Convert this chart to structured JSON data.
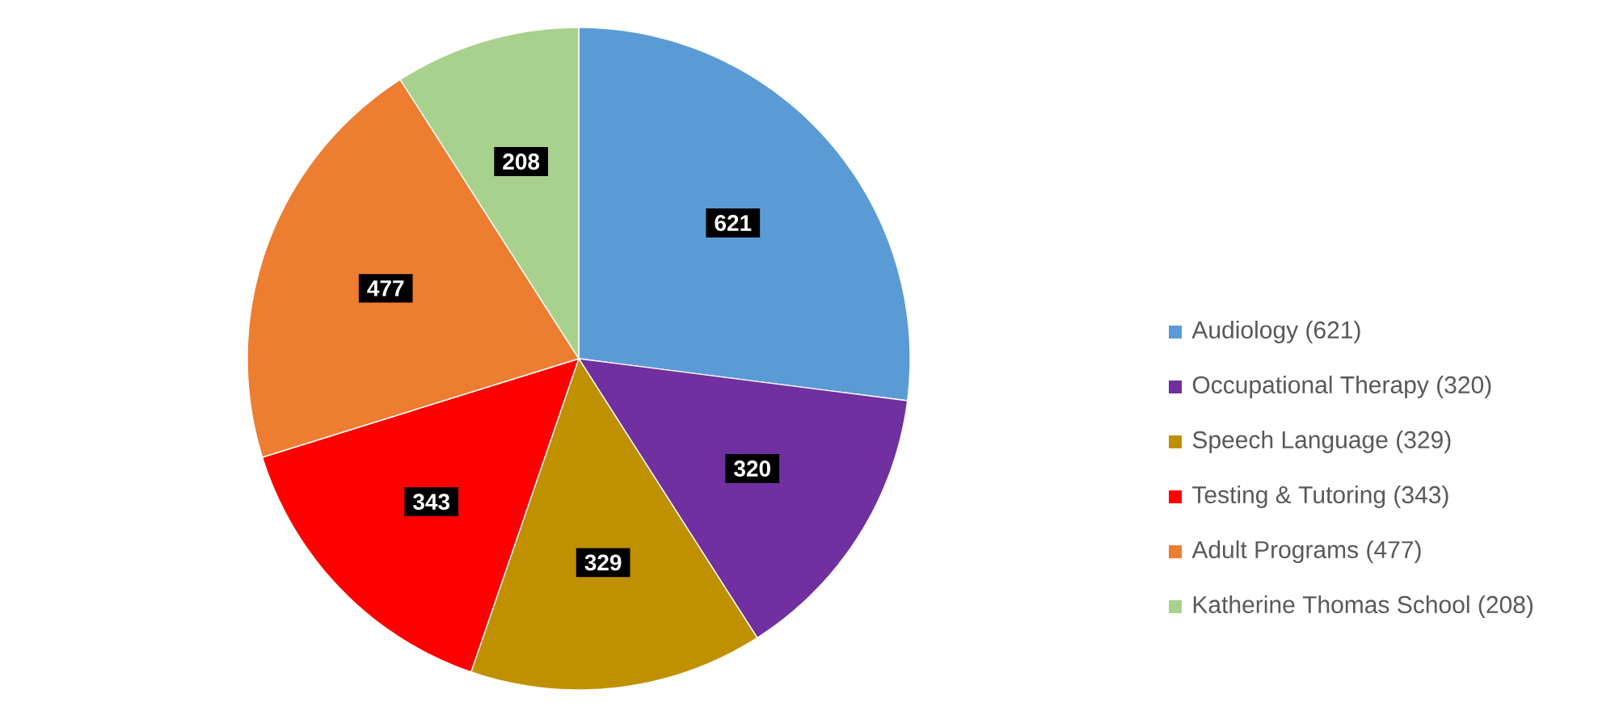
{
  "chart_data": {
    "type": "pie",
    "categories": [
      "Audiology (621)",
      "Occupational Therapy (320)",
      "Speech Language (329)",
      "Testing & Tutoring (343)",
      "Adult Programs (477)",
      "Katherine Thomas School (208)"
    ],
    "values": [
      621,
      320,
      329,
      343,
      477,
      208
    ],
    "colors": [
      "#5b9bd5",
      "#7030a0",
      "#bf9000",
      "#ff0000",
      "#ed7d31",
      "#a9d18e"
    ],
    "data_labels": true,
    "legend": "right"
  }
}
